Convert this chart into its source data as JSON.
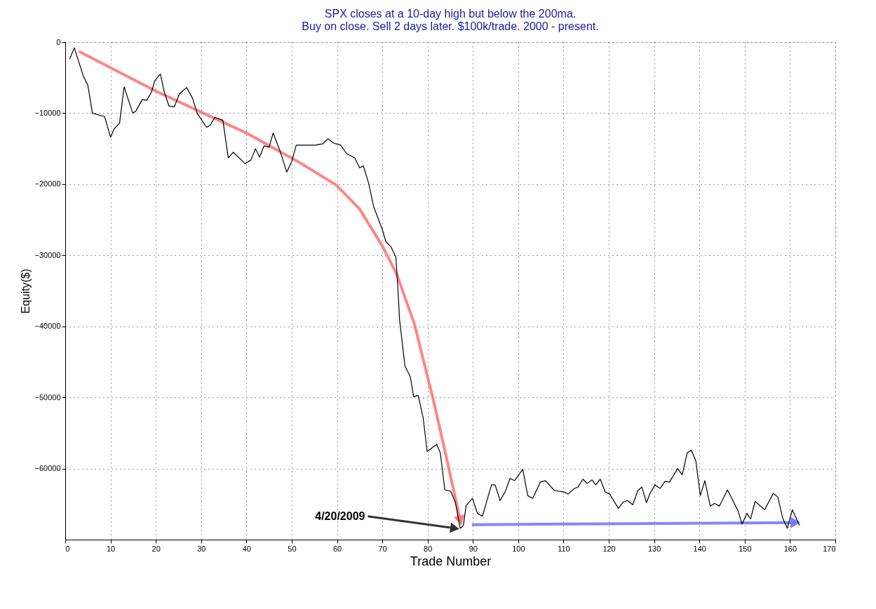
{
  "chart_data": {
    "type": "line",
    "title": [
      "SPX closes at a 10-day high but below the 200ma.",
      "Buy on close. Sell 2 days later. $100k/trade. 2000 - present."
    ],
    "xlabel": "Trade Number",
    "ylabel": "Equity($)",
    "xlim": [
      0,
      170
    ],
    "xticks": [
      0,
      10,
      20,
      30,
      40,
      50,
      60,
      70,
      80,
      90,
      100,
      110,
      120,
      130,
      140,
      150,
      160,
      170
    ],
    "ylim": [
      -70000,
      0
    ],
    "yticks": [
      0,
      -10000,
      -20000,
      -30000,
      -40000,
      -50000,
      -60000
    ],
    "grid": true,
    "series": [
      {
        "color": "#000000",
        "x": [
          1,
          2,
          4,
          5,
          6,
          8.7,
          10,
          10.8,
          12,
          13,
          14.9,
          15.6,
          17,
          18,
          19,
          19.8,
          21,
          21.9,
          22.9,
          24.1,
          25.2,
          26.8,
          28.1,
          29.1,
          31.2,
          32,
          33,
          34.8,
          36,
          37.1,
          39.7,
          41,
          42,
          42.9,
          43.9,
          45,
          45.9,
          47.4,
          48.9,
          50,
          51,
          53.1,
          55.2,
          56.9,
          58,
          59.2,
          60.8,
          62.1,
          63.9,
          65,
          65.8,
          67,
          68.1,
          69.9,
          70.8,
          71.9,
          73,
          73.5,
          73.8,
          75,
          76.2,
          76.9,
          77.9,
          79,
          79.9,
          82,
          82.8,
          83.8,
          85.1,
          86.1,
          87.2,
          87.9,
          88.5,
          89.9,
          91,
          92.1,
          94.1,
          94.9,
          96,
          97.1,
          98.2,
          99.2,
          101,
          102.1,
          103.2,
          104.9,
          106,
          108,
          110.2,
          111,
          112.4,
          113.2,
          114.3,
          115.2,
          116.3,
          117.1,
          118.1,
          119.2,
          120.2,
          122.1,
          123.2,
          124.1,
          125.3,
          126.4,
          127.3,
          128.3,
          129.1,
          130.2,
          131.3,
          132.4,
          133.4,
          135.2,
          136.2,
          137.3,
          138.2,
          139.2,
          140.2,
          141.2,
          142.4,
          143.3,
          144.4,
          146.2,
          148.5,
          149.4,
          150.5,
          151.3,
          152.3,
          154.4,
          156.3,
          157.3,
          158.4,
          159.4,
          160.5,
          162.1
        ],
        "values": [
          -2400,
          -800,
          -4800,
          -6100,
          -10000,
          -10500,
          -13400,
          -12200,
          -11400,
          -6300,
          -10000,
          -9700,
          -8100,
          -8200,
          -7100,
          -5400,
          -4500,
          -7100,
          -9000,
          -9100,
          -7300,
          -6400,
          -7900,
          -10000,
          -12000,
          -11700,
          -10600,
          -11000,
          -16300,
          -15500,
          -17100,
          -16600,
          -15000,
          -16200,
          -14600,
          -14800,
          -12800,
          -15300,
          -18300,
          -16800,
          -14500,
          -14500,
          -14500,
          -14300,
          -13600,
          -14200,
          -14500,
          -15700,
          -16300,
          -17700,
          -17400,
          -19900,
          -23200,
          -26200,
          -28100,
          -28800,
          -30300,
          -35400,
          -39000,
          -45600,
          -47100,
          -49900,
          -49700,
          -52800,
          -57600,
          -56600,
          -57800,
          -63000,
          -63200,
          -64700,
          -68400,
          -68000,
          -65200,
          -64200,
          -66300,
          -66700,
          -62300,
          -62300,
          -64500,
          -63300,
          -61400,
          -61700,
          -60100,
          -63800,
          -64200,
          -61900,
          -61700,
          -63100,
          -63300,
          -63600,
          -62800,
          -62600,
          -61500,
          -62100,
          -61600,
          -62300,
          -61500,
          -63300,
          -63600,
          -65600,
          -64700,
          -64500,
          -65100,
          -63100,
          -62600,
          -64800,
          -63500,
          -62300,
          -62800,
          -61800,
          -61900,
          -60000,
          -60900,
          -57800,
          -57400,
          -58900,
          -63800,
          -61700,
          -65300,
          -64900,
          -65300,
          -63000,
          -65900,
          -67800,
          -66300,
          -67100,
          -64600,
          -65800,
          -63500,
          -64000,
          -67000,
          -68400,
          -65800,
          -68000
        ]
      },
      {
        "color": "#ff7070",
        "x": [
          3,
          20,
          40,
          51.6,
          59.8,
          65,
          70.1,
          73.2,
          77.1,
          81.2,
          84,
          87.2
        ],
        "values": [
          -1300,
          -6900,
          -12800,
          -16900,
          -20100,
          -23500,
          -28800,
          -32700,
          -39700,
          -50200,
          -58000,
          -67300
        ]
      },
      {
        "color": "#7070ff",
        "x": [
          89.8,
          161.2
        ],
        "values": [
          -67900,
          -67600
        ]
      }
    ],
    "annotations": [
      {
        "text": "4/20/2009",
        "x": 87.2,
        "y": -68400
      }
    ]
  }
}
